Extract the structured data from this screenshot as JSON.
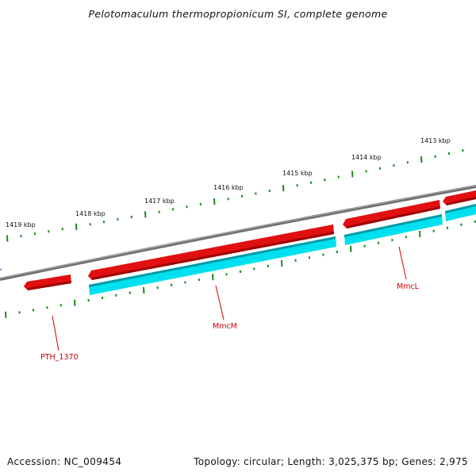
{
  "title": "Pelotomaculum thermopropionicum SI, complete genome",
  "footer": {
    "accession": "Accession: NC_009454",
    "topology": "Topology: circular; Length: 3,025,375 bp; Genes: 2,975"
  },
  "scale_labels": [
    "1419 kbp",
    "1418 kbp",
    "1417 kbp",
    "1416 kbp",
    "1415 kbp",
    "1414 kbp",
    "1413 kbp"
  ],
  "gene_labels": [
    "PTH_1370",
    "MmcM",
    "MmcL"
  ],
  "colors": {
    "backbone": "#808080",
    "gene_forward": "#e01010",
    "gene_cds": "#00e0ee",
    "ticks": "#1a8a1a",
    "label_line": "#cc0000"
  }
}
